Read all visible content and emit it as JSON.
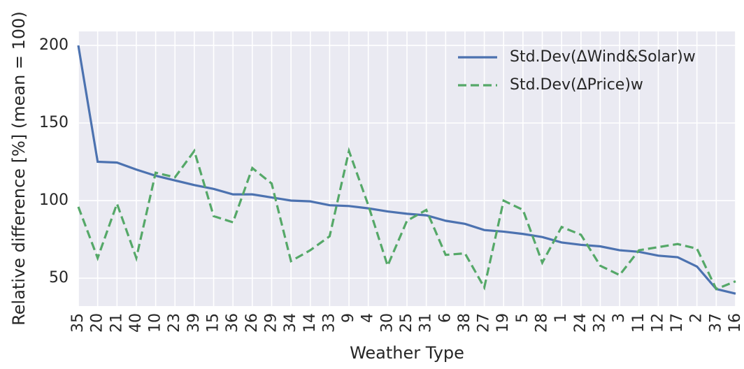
{
  "chart_data": {
    "type": "line",
    "x_label": "Weather Type",
    "y_label": "Relative difference [%] (mean = 100)",
    "categories": [
      "35",
      "20",
      "21",
      "40",
      "10",
      "23",
      "39",
      "15",
      "36",
      "26",
      "29",
      "34",
      "14",
      "33",
      "9",
      "4",
      "30",
      "25",
      "31",
      "6",
      "38",
      "27",
      "19",
      "5",
      "28",
      "1",
      "24",
      "32",
      "3",
      "11",
      "12",
      "17",
      "2",
      "37",
      "16"
    ],
    "series": [
      {
        "name": "Std.Dev(ΔWind&Solar)w",
        "color": "#4c72b0",
        "dash": "solid",
        "values": [
          200,
          125,
          124.5,
          120,
          116,
          113,
          110,
          107.5,
          104,
          104,
          102,
          100,
          99.5,
          97,
          96.5,
          95,
          93,
          91.5,
          90.5,
          87,
          85,
          81,
          80,
          78.5,
          76.5,
          73,
          71.5,
          70.5,
          68,
          67,
          64.5,
          63.5,
          57.5,
          43,
          40
        ]
      },
      {
        "name": "Std.Dev(ΔPrice)w",
        "color": "#55a868",
        "dash": "dashed",
        "values": [
          96,
          63,
          98,
          63,
          118,
          115,
          132,
          90,
          86,
          121,
          111,
          61,
          68,
          77,
          132,
          97,
          58,
          87,
          94,
          65,
          66,
          44,
          100,
          94,
          60,
          83,
          78,
          58,
          52,
          68,
          70,
          72,
          69,
          43,
          48
        ]
      }
    ],
    "ylim": [
      32,
      209
    ],
    "yticks": [
      50,
      100,
      150,
      200
    ],
    "grid": true,
    "legend": "upper right"
  }
}
